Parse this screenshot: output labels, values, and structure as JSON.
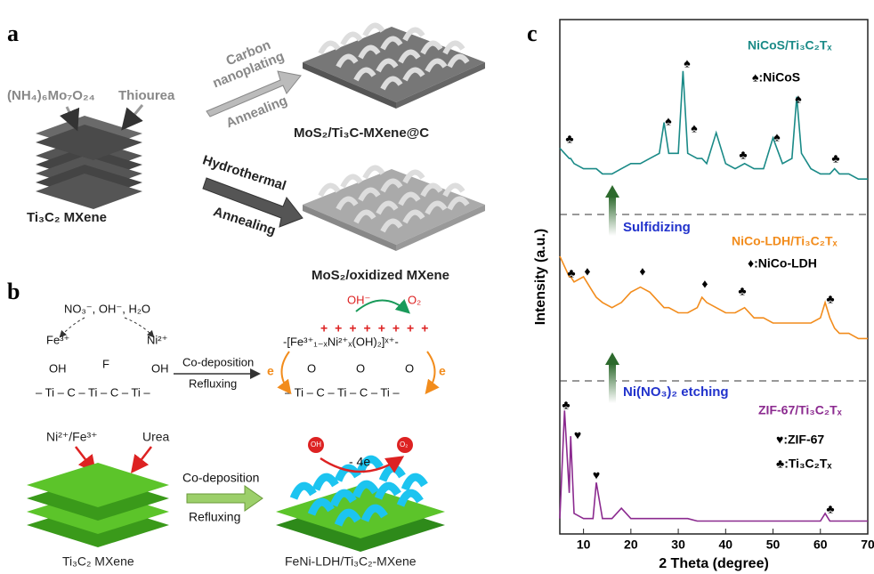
{
  "panels": {
    "a": {
      "letter": "a",
      "precursor": "(NH₄)₆Mo₇O₂₄",
      "thiourea": "Thiourea",
      "carbon": "Carbon",
      "nanoplating": "nanoplating",
      "annealing_1": "Annealing",
      "hydrothermal": "Hydrothermal",
      "annealing_2": "Annealing",
      "substrate": "Ti₃C₂ MXene",
      "product_1": "MoS₂/Ti₃C-MXene@C",
      "product_2": "MoS₂/oxidized MXene"
    },
    "b": {
      "letter": "b",
      "reagents": "NO₃⁻, OH⁻, H₂O",
      "fe": "Fe³⁺",
      "ni": "Ni²⁺",
      "oh_1": "OH",
      "f": "F",
      "oh_2": "OH",
      "chain_1": "– Ti – C – Ti – C – Ti –",
      "codep_1": "Co-deposition",
      "reflux_1": "Refluxing",
      "oh_minus": "OH⁻",
      "o2": "O₂",
      "ldh_formula": "-[Fe³⁺₁₋ₓNi²⁺ₓ(OH)₂]ˣ⁺-",
      "o_1": "O",
      "o_2": "O",
      "o_3": "O",
      "chain_2": "– Ti – C – Ti – C – Ti –",
      "e_1": "e",
      "e_2": "e",
      "ions": "Ni²⁺/Fe³⁺",
      "urea": "Urea",
      "codep_2": "Co-deposition",
      "reflux_2": "Refluxing",
      "four_e": "- 4e",
      "oh_ball": "OH",
      "o2_ball": "O₂",
      "substrate": "Ti₃C₂ MXene",
      "product": "FeNi-LDH/Ti₃C₂-MXene"
    }
  },
  "chart_data": {
    "type": "line",
    "panel_letter": "c",
    "xlabel": "2 Theta (degree)",
    "ylabel": "Intensity (a.u.)",
    "x": [
      5,
      6,
      7,
      7.3,
      8,
      10,
      12,
      12.7,
      14,
      16,
      18,
      20,
      22,
      24,
      26,
      27,
      28,
      30,
      31,
      32,
      34,
      35,
      36,
      38,
      40,
      42,
      44,
      46,
      48,
      50,
      52,
      54,
      55,
      56,
      58,
      60,
      61,
      62,
      63,
      64,
      66,
      68,
      70
    ],
    "xlim": [
      5,
      70
    ],
    "xticks": [
      10,
      20,
      30,
      40,
      50,
      60,
      70
    ],
    "ylim": [
      0,
      100
    ],
    "series": [
      {
        "name": "NiCoS/Ti₃C₂Tₓ",
        "color": "#1a8a87",
        "values": [
          75,
          74,
          73,
          73,
          72,
          71,
          71,
          71,
          70,
          70,
          71,
          72,
          72,
          73,
          74,
          80,
          74,
          74,
          90,
          74,
          73,
          73,
          72,
          78,
          72,
          71,
          72,
          71,
          71,
          77,
          72,
          73,
          85,
          74,
          71,
          70,
          70,
          70,
          71,
          70,
          70,
          69,
          69
        ]
      },
      {
        "name": "NiCo-LDH/Ti₃C₂Tₓ",
        "color": "#f28c1c",
        "values": [
          54,
          52,
          50,
          50,
          49,
          50,
          47,
          46,
          45,
          44,
          45,
          47,
          48,
          47,
          45,
          44,
          44,
          43,
          43,
          43,
          44,
          46,
          45,
          44,
          43,
          43,
          44,
          42,
          42,
          41,
          41,
          41,
          41,
          41,
          41,
          42,
          45,
          42,
          40,
          39,
          39,
          38,
          38
        ]
      },
      {
        "name": "ZIF-67/Ti₃C₂Tₓ",
        "color": "#8b2a8f",
        "values": [
          3,
          24,
          8,
          19,
          4,
          3,
          3,
          10,
          3,
          3,
          5,
          3,
          3,
          3,
          3,
          3,
          3,
          3,
          3,
          3,
          2.5,
          2.5,
          2.5,
          2.5,
          2.5,
          2.5,
          2.5,
          2.5,
          2.5,
          2.5,
          2.5,
          2.5,
          2.5,
          2.5,
          2.5,
          2.5,
          4,
          2.5,
          2.5,
          2.5,
          2.5,
          2.5,
          2.5
        ]
      }
    ],
    "legend_keys": [
      "♠:NiCoS",
      "♦:NiCo-LDH",
      "♥:ZIF-67",
      "♣:Ti₃C₂Tₓ"
    ],
    "steps": [
      "Sulfidizing",
      "Ni(NO₃)₂ etching"
    ],
    "peak_markers": [
      "♣",
      "♠",
      "♠",
      "♠",
      "♣",
      "♠",
      "♠",
      "♣",
      "♣",
      "♦",
      "♦",
      "♦",
      "♣",
      "♣",
      "♣",
      "♥",
      "♥",
      "♣"
    ]
  }
}
